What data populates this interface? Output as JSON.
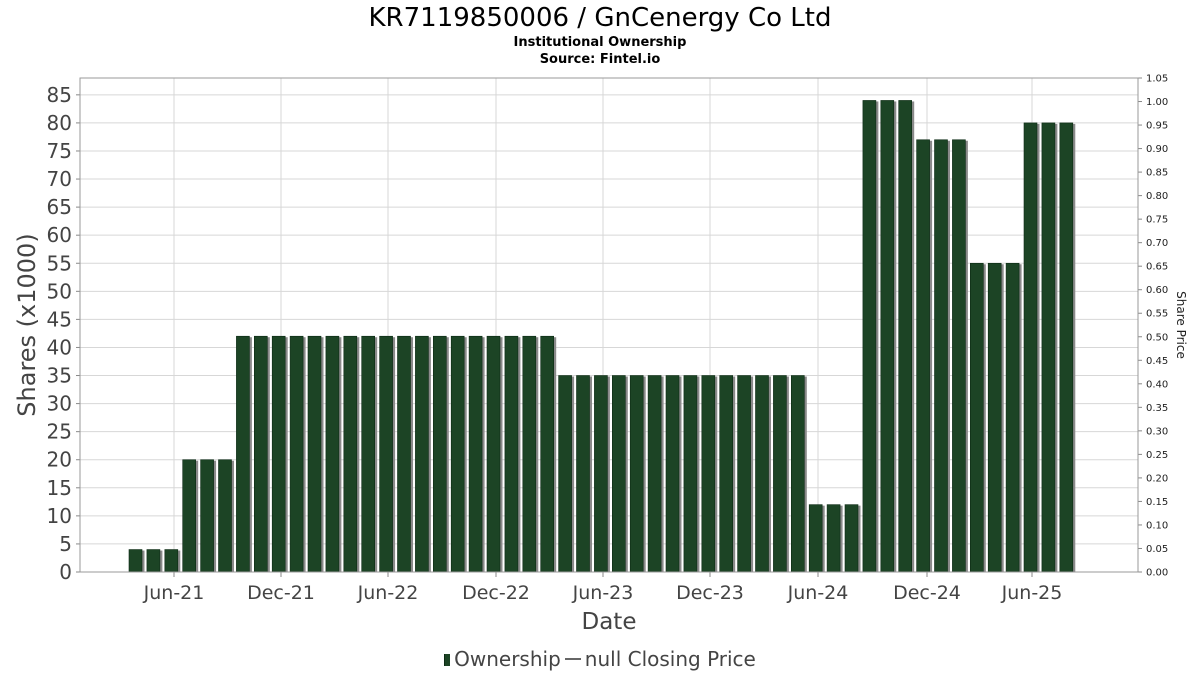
{
  "title": "KR7119850006 / GnCenergy Co Ltd",
  "subtitle1": "Institutional Ownership",
  "subtitle2": "Source: Fintel.io",
  "legend": {
    "ownership_label": "Ownership",
    "price_label": "null Closing Price"
  },
  "colors": {
    "bar": "#1c4425",
    "bar_shadow": "#8a8a8a",
    "grid": "#d7d7d7",
    "plot_border": "#999999",
    "axis_text": "#444444"
  },
  "chart_data": {
    "type": "bar",
    "xlabel": "Date",
    "ylabel": "Shares (x1000)",
    "y2label": "Share Price",
    "ylim": [
      0,
      88
    ],
    "y_ticks": [
      0,
      5,
      10,
      15,
      20,
      25,
      30,
      35,
      40,
      45,
      50,
      55,
      60,
      65,
      70,
      75,
      80,
      85
    ],
    "y2lim": [
      0,
      1.05
    ],
    "y2_ticks": [
      "0.00",
      "0.05",
      "0.10",
      "0.15",
      "0.20",
      "0.25",
      "0.30",
      "0.35",
      "0.40",
      "0.45",
      "0.50",
      "0.55",
      "0.60",
      "0.65",
      "0.70",
      "0.75",
      "0.80",
      "0.85",
      "0.90",
      "0.95",
      "1.00",
      "1.05"
    ],
    "x_tick_labels": [
      "Jun-21",
      "Dec-21",
      "Jun-22",
      "Dec-22",
      "Jun-23",
      "Dec-23",
      "Jun-24",
      "Dec-24",
      "Jun-25"
    ],
    "grid": true,
    "legend_position": "bottom",
    "series": [
      {
        "name": "Ownership",
        "values": [
          4,
          4,
          4,
          20,
          20,
          20,
          42,
          42,
          42,
          42,
          42,
          42,
          42,
          42,
          42,
          42,
          42,
          42,
          42,
          42,
          42,
          42,
          42,
          42,
          35,
          35,
          35,
          35,
          35,
          35,
          35,
          35,
          35,
          35,
          35,
          35,
          35,
          35,
          12,
          12,
          12,
          84,
          84,
          84,
          77,
          77,
          77,
          55,
          55,
          55,
          80,
          80,
          80
        ]
      }
    ]
  }
}
